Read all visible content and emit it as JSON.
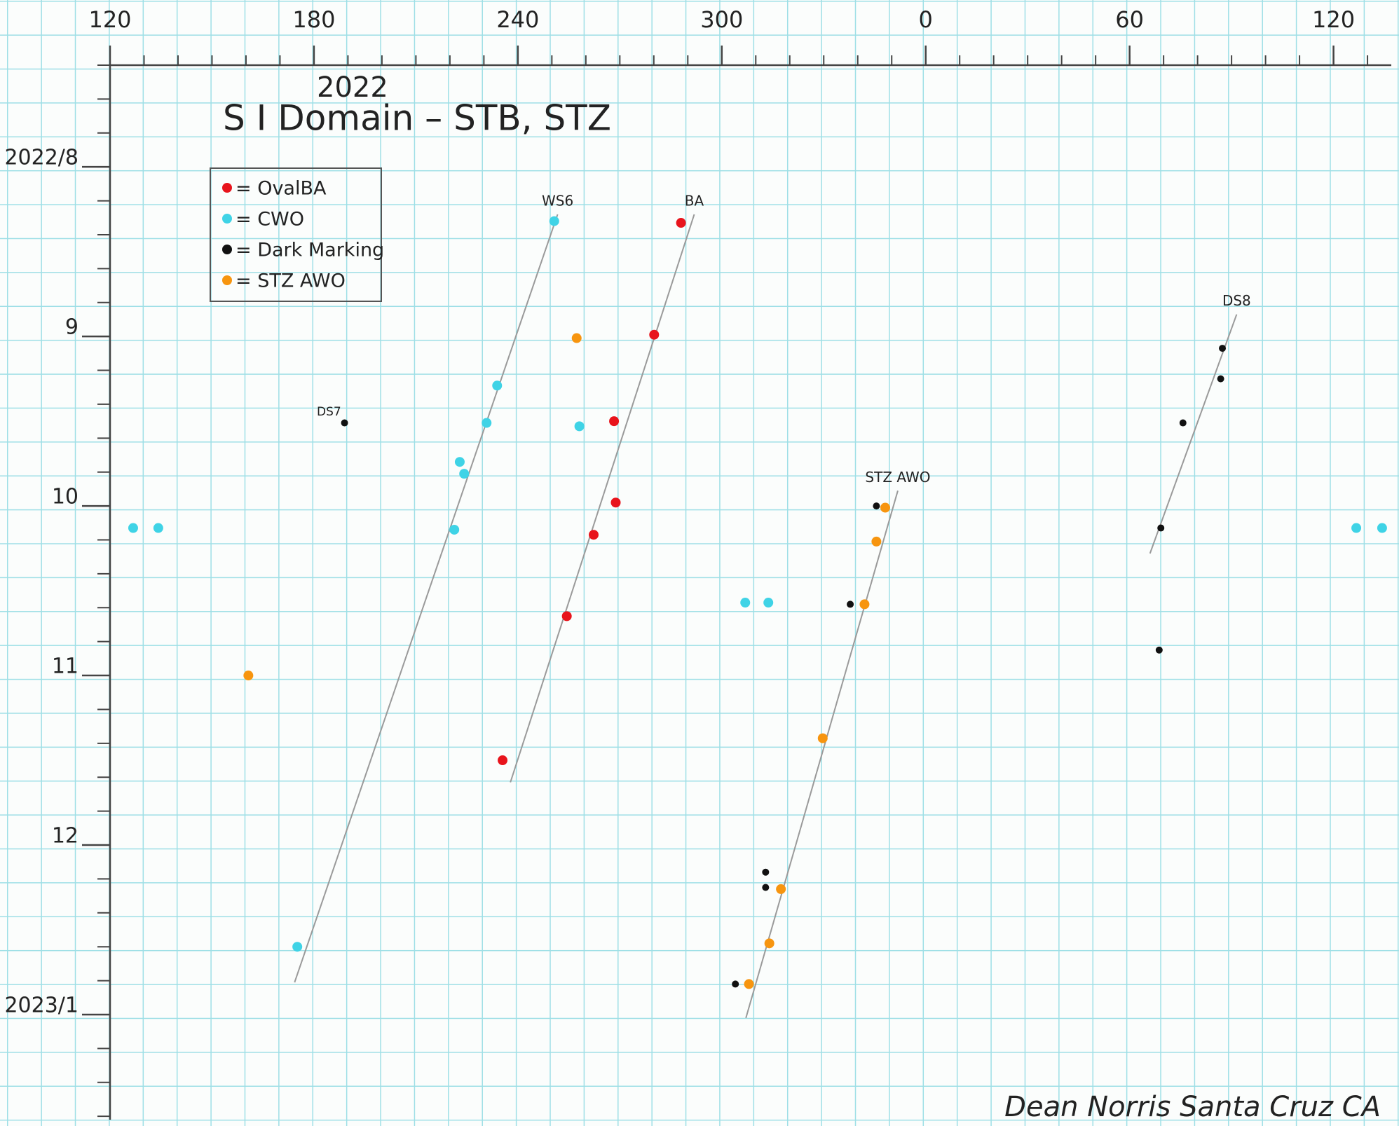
{
  "chart_data": {
    "type": "scatter",
    "title": "2022",
    "subtitle": "S I Domain – STB, STZ",
    "signature": "Dean Norris Santa Cruz CA",
    "xlim": [
      120,
      497
    ],
    "ylim": [
      13.62,
      7.4
    ],
    "xticks": [
      120,
      180,
      240,
      300,
      {
        "value": 360,
        "label": "0"
      },
      {
        "value": 420,
        "label": "60"
      },
      {
        "value": 480,
        "label": "120"
      }
    ],
    "yticks": [
      {
        "value": 8,
        "label": "2022/8"
      },
      9,
      10,
      11,
      12,
      {
        "value": 13,
        "label": "2023/1"
      }
    ],
    "minor_ticks": {
      "x": 10,
      "y": 0.2
    },
    "grid": true,
    "legend": "upper-left",
    "series": [
      {
        "name": "= OvalBA",
        "color": "#e8141c",
        "x": [
          288.0,
          280.1,
          268.3,
          268.8,
          262.3,
          254.4,
          235.5
        ],
        "values": [
          8.33,
          8.99,
          9.5,
          9.98,
          10.17,
          10.65,
          11.5
        ]
      },
      {
        "name": "= CWO",
        "color": "#3fd3e6",
        "x": [
          250.7,
          233.9,
          230.8,
          258.1,
          222.9,
          224.2,
          221.3,
          126.8,
          134.2,
          306.9,
          313.7,
          175.1,
          486.7,
          494.3
        ],
        "values": [
          8.32,
          9.29,
          9.51,
          9.53,
          9.74,
          9.81,
          10.14,
          10.13,
          10.13,
          10.57,
          10.57,
          12.6,
          10.13,
          10.13
        ]
      },
      {
        "name": "= Dark Marking",
        "color": "#111111",
        "x": [
          189.0,
          447.3,
          446.8,
          435.7,
          429.2,
          428.7,
          345.5,
          337.8,
          312.9,
          312.9,
          304.0
        ],
        "values": [
          9.51,
          9.07,
          9.25,
          9.51,
          10.13,
          10.85,
          10.0,
          10.58,
          12.16,
          12.25,
          12.82
        ]
      },
      {
        "name": "= STZ AWO",
        "color": "#f7950f",
        "x": [
          257.3,
          160.7,
          348.1,
          345.5,
          342.0,
          329.7,
          317.4,
          314.0,
          308.0
        ],
        "values": [
          9.01,
          11.0,
          10.01,
          10.21,
          10.58,
          11.37,
          12.26,
          12.58,
          12.82
        ]
      }
    ],
    "trend_lines": [
      {
        "label": "WS6",
        "x": [
          174.3,
          251.7
        ],
        "values": [
          12.81,
          8.28
        ]
      },
      {
        "label": "BA",
        "x": [
          237.8,
          291.9
        ],
        "values": [
          11.63,
          8.28
        ]
      },
      {
        "label": "STZ AWO",
        "x": [
          307.1,
          351.8
        ],
        "values": [
          13.02,
          9.91
        ]
      },
      {
        "label": "DS8",
        "x": [
          426.0,
          451.5
        ],
        "values": [
          10.28,
          8.87
        ]
      }
    ],
    "annotations": [
      "DS7"
    ]
  }
}
